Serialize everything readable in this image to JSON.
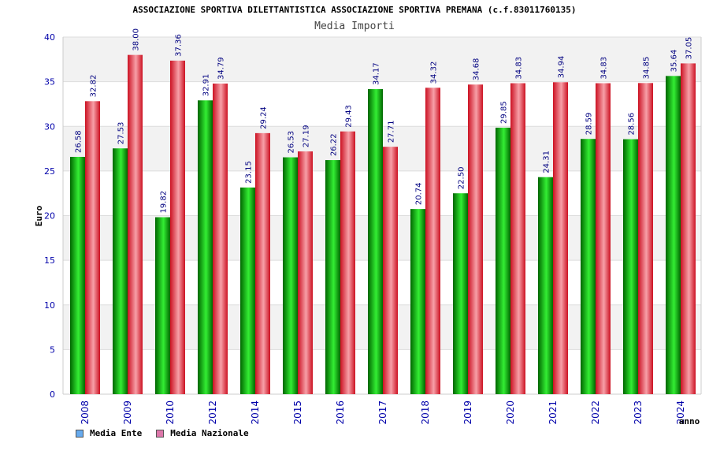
{
  "chart_data": {
    "type": "bar",
    "title": "ASSOCIAZIONE SPORTIVA DILETTANTISTICA ASSOCIAZIONE SPORTIVA PREMANA (c.f.83011760135)",
    "subtitle": "Media Importi",
    "xlabel": "anno",
    "ylabel": "Euro",
    "ylim": [
      0,
      40
    ],
    "yticks": [
      0,
      5,
      10,
      15,
      20,
      25,
      30,
      35,
      40
    ],
    "categories": [
      "2008",
      "2009",
      "2010",
      "2012",
      "2014",
      "2015",
      "2016",
      "2017",
      "2018",
      "2019",
      "2020",
      "2021",
      "2022",
      "2023",
      "2024"
    ],
    "series": [
      {
        "name": "Media Ente",
        "values": [
          26.58,
          27.53,
          19.82,
          32.91,
          23.15,
          26.53,
          26.22,
          34.17,
          20.74,
          22.5,
          29.85,
          24.31,
          28.59,
          28.56,
          35.64
        ],
        "labels": [
          "26.58",
          "27.53",
          "19.82",
          "32.91",
          "23.15",
          "26.53",
          "26.22",
          "34.17",
          "20.74",
          "22.50",
          "29.85",
          "24.31",
          "28.59",
          "28.56",
          "35.64"
        ]
      },
      {
        "name": "Media Nazionale",
        "values": [
          32.82,
          38.0,
          37.36,
          34.79,
          29.24,
          27.19,
          29.43,
          27.71,
          34.32,
          34.68,
          34.83,
          34.94,
          34.83,
          34.85,
          37.05
        ],
        "labels": [
          "32.82",
          "38.00",
          "37.36",
          "34.79",
          "29.24",
          "27.19",
          "29.43",
          "27.71",
          "34.32",
          "34.68",
          "34.83",
          "34.94",
          "34.83",
          "34.85",
          "37.05"
        ]
      }
    ],
    "grid": true,
    "legend_position": "bottom-left"
  },
  "legend": {
    "items": [
      {
        "label": "Media Ente",
        "color": "#66aaee"
      },
      {
        "label": "Media Nazionale",
        "color": "#dd77aa"
      }
    ]
  },
  "colors": {
    "ente_dark": "#006600",
    "ente_light": "#33ee33",
    "naz_dark": "#cc1122",
    "naz_light": "#f7a0a8",
    "band": "#f2f2f2",
    "axis_text": "#0000aa"
  }
}
